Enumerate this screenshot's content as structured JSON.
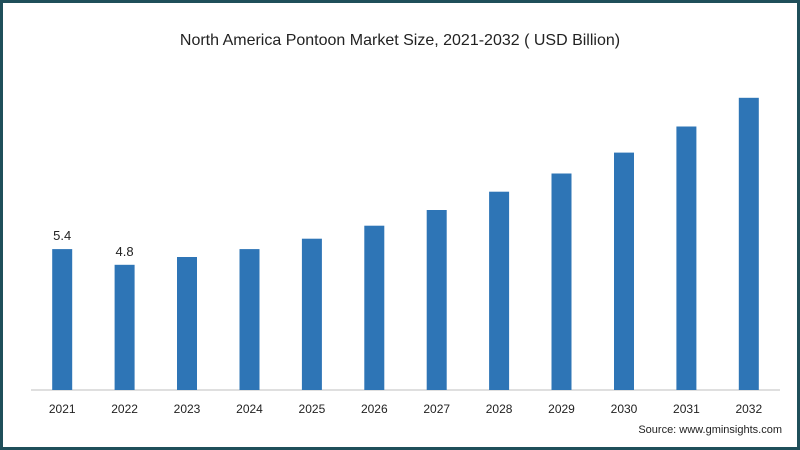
{
  "colors": {
    "bar": "#2e75b6",
    "axis": "#bfbfbf",
    "text": "#222222",
    "border": "#1f4f5a"
  },
  "chart_data": {
    "type": "bar",
    "title": "North America Pontoon Market Size, 2021-2032 ( USD Billion)",
    "xlabel": "",
    "ylabel": "",
    "categories": [
      "2021",
      "2022",
      "2023",
      "2024",
      "2025",
      "2026",
      "2027",
      "2028",
      "2029",
      "2030",
      "2031",
      "2032"
    ],
    "values": [
      5.4,
      4.8,
      5.1,
      5.4,
      5.8,
      6.3,
      6.9,
      7.6,
      8.3,
      9.1,
      10.1,
      11.2
    ],
    "data_labels": [
      "5.4",
      "4.8",
      "",
      "",
      "",
      "",
      "",
      "",
      "",
      "",
      "",
      ""
    ],
    "ylim": [
      0,
      11.5
    ],
    "grid": false,
    "legend": "none"
  },
  "source": "Source: www.gminsights.com"
}
